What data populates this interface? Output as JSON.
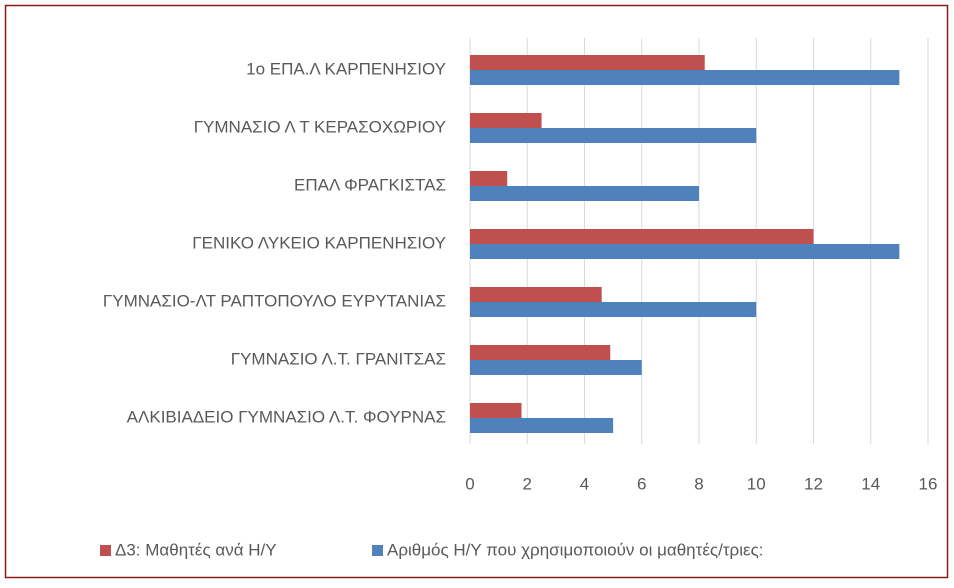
{
  "chart_data": {
    "type": "bar",
    "orientation": "horizontal",
    "categories": [
      "1ο ΕΠΑ.Λ ΚΑΡΠΕΝΗΣΙΟΥ",
      "ΓΥΜΝΑΣΙΟ Λ Τ ΚΕΡΑΣΟΧΩΡΙΟΥ ",
      "ΕΠΑΛ ΦΡΑΓΚΙΣΤΑΣ",
      "ΓΕΝΙΚΟ ΛΥΚΕΙΟ ΚΑΡΠΕΝΗΣΙΟΥ",
      "ΓΥΜΝΑΣΙΟ-ΛΤ ΡΑΠΤΟΠΟΥΛΟ ΕΥΡΥΤΑΝΙΑΣ",
      "ΓΥΜΝΑΣΙΟ Λ.Τ. ΓΡΑΝΙΤΣΑΣ",
      "ΑΛΚΙΒΙΑΔΕΙΟ ΓΥΜΝΑΣΙΟ Λ.Τ. ΦΟΥΡΝΑΣ"
    ],
    "series": [
      {
        "name": "Δ3: Μαθητές ανά Η/Υ",
        "color": "#c0504d",
        "values": [
          8.2,
          2.5,
          1.3,
          12,
          4.6,
          4.9,
          1.8
        ]
      },
      {
        "name": "Αριθμός Η/Υ που χρησιμοποιούν οι μαθητές/τριες:",
        "color": "#4f81bd",
        "values": [
          15,
          10,
          8,
          15,
          10,
          6,
          5
        ]
      }
    ],
    "xlim": [
      0,
      16
    ],
    "xticks": [
      0,
      2,
      4,
      6,
      8,
      10,
      12,
      14,
      16
    ],
    "grid": true,
    "legend": "bottom"
  }
}
